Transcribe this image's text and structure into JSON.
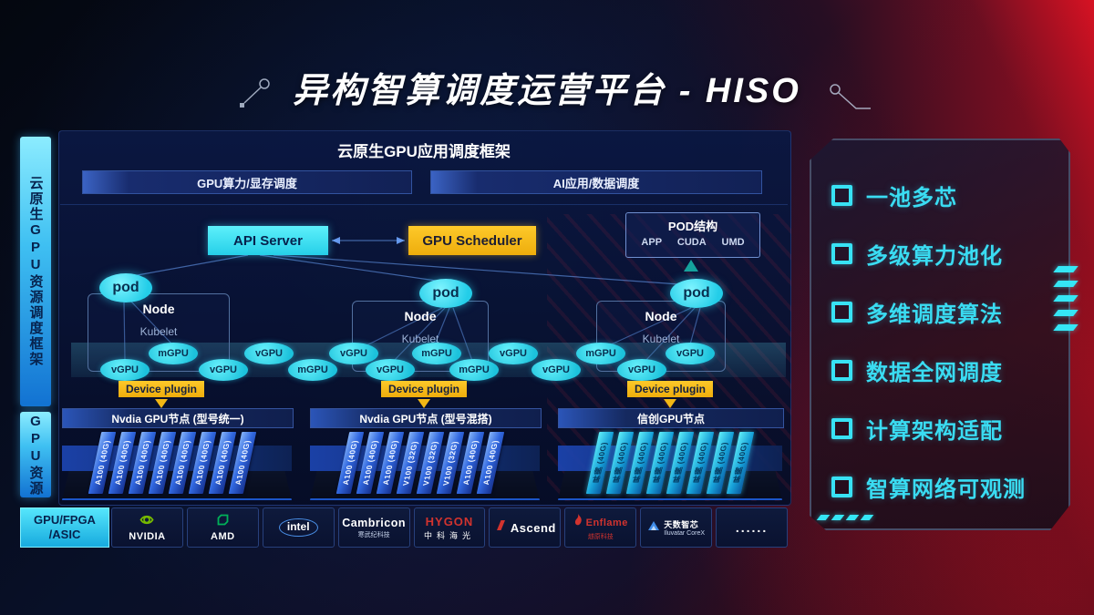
{
  "title": "异构智算调度运营平台 - HISO",
  "sidebar": {
    "top": "云原生GPU资源调度框架",
    "bottom": "GPU资源"
  },
  "framework": {
    "title": "云原生GPU应用调度框架",
    "bars": [
      "GPU算力/显存调度",
      "AI应用/数据调度"
    ]
  },
  "scheduler": {
    "api_server": "API Server",
    "gpu_scheduler": "GPU Scheduler"
  },
  "pod_struct": {
    "title": "POD结构",
    "items": [
      "APP",
      "CUDA",
      "UMD"
    ]
  },
  "nodes": [
    {
      "pod": "pod",
      "label": "Node",
      "sub": "Kubelet",
      "device_plugin": "Device plugin"
    },
    {
      "pod": "pod",
      "label": "Node",
      "sub": "Kubelet",
      "device_plugin": "Device plugin"
    },
    {
      "pod": "pod",
      "label": "Node",
      "sub": "Kubelet",
      "device_plugin": "Device plugin"
    }
  ],
  "ovals": {
    "top": [
      "mGPU",
      "vGPU",
      "vGPU",
      "mGPU",
      "vGPU",
      "mGPU",
      "vGPU"
    ],
    "bottom": [
      "vGPU",
      "vGPU",
      "mGPU",
      "vGPU",
      "mGPU",
      "vGPU",
      "vGPU"
    ]
  },
  "gpu_groups": [
    {
      "title": "Nvdia GPU节点 (型号统一)",
      "style": "blue",
      "cards": [
        "A100 (40G)",
        "A100 (40G)",
        "A100 (40G)",
        "A100 (40G)",
        "A100 (40G)",
        "A100 (40G)",
        "A100 (40G)",
        "A100 (40G)"
      ]
    },
    {
      "title": "Nvdia GPU节点 (型号混搭)",
      "style": "blue",
      "cards": [
        "A100 (40G)",
        "A100 (40G)",
        "A100 (40G)",
        "V100 (32G)",
        "V100 (32G)",
        "V100 (32G)",
        "A100 (40G)",
        "A100 (40G)"
      ]
    },
    {
      "title": "信创GPU节点",
      "style": "cyan",
      "cards": [
        "昇腾 (40G)",
        "昇腾 (40G)",
        "昇腾 (40G)",
        "昇腾 (40G)",
        "昇腾 (40G)",
        "昇腾 (40G)",
        "昇腾 (40G)",
        "昇腾 (40G)"
      ]
    }
  ],
  "hardware": {
    "label_line1": "GPU/FPGA",
    "label_line2": "/ASIC",
    "vendors": [
      {
        "name": "NVIDIA",
        "logo": "nvidia"
      },
      {
        "name": "AMD",
        "logo": "amd"
      },
      {
        "name": "intel",
        "logo": "intel"
      },
      {
        "name": "Cambricon",
        "sub": "寒武纪科技",
        "logo": "none"
      },
      {
        "name": "HYGON",
        "sub": "中科海光",
        "logo": "hygon"
      },
      {
        "name": "Ascend",
        "logo": "ascend"
      },
      {
        "name": "Enflame",
        "sub": "燧原科技",
        "logo": "enflame"
      },
      {
        "name": "天数智芯",
        "sub": "Iluvatar CoreX",
        "logo": "iluvatar"
      },
      {
        "name": "......",
        "logo": "dots"
      }
    ]
  },
  "features": [
    "一池多芯",
    "多级算力池化",
    "多维调度算法",
    "数据全网调度",
    "计算架构适配",
    "智算网络可观测"
  ],
  "colors": {
    "accent_cyan": "#35e3f2",
    "accent_yellow": "#f2b714",
    "card_blue": "#3168e0",
    "card_cyan": "#16a0d8",
    "nvidia_green": "#76b900",
    "amd_green": "#00b259",
    "intel_blue": "#4a90e8",
    "logo_red": "#d2332e",
    "iluvatar_blue": "#3f8ce8"
  }
}
